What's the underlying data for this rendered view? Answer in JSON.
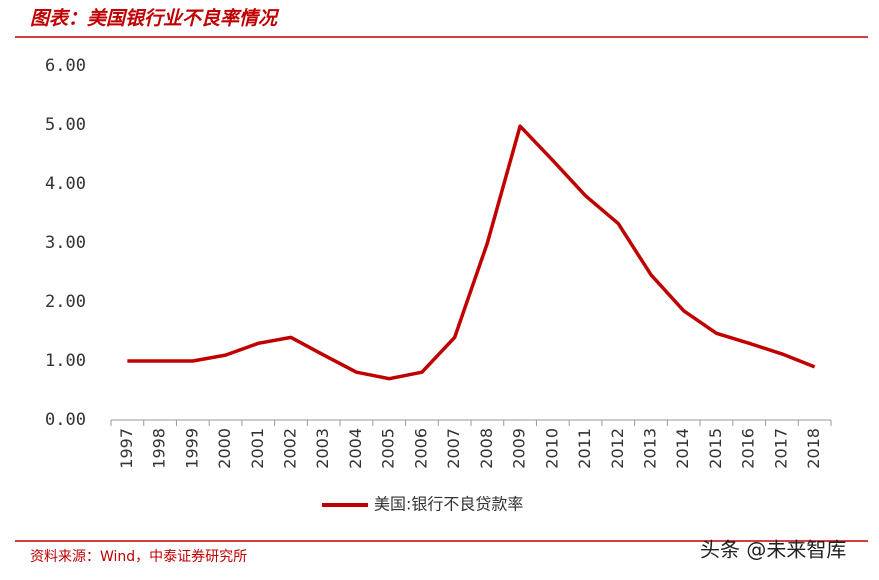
{
  "chart_data": {
    "type": "line",
    "title": "图表：美国银行业不良率情况",
    "categories": [
      "1997",
      "1998",
      "1999",
      "2000",
      "2001",
      "2002",
      "2003",
      "2004",
      "2005",
      "2006",
      "2007",
      "2008",
      "2009",
      "2010",
      "2011",
      "2012",
      "2013",
      "2014",
      "2015",
      "2016",
      "2017",
      "2018"
    ],
    "series": [
      {
        "name": "美国:银行不良贷款率",
        "color": "#c00000",
        "values": [
          1.0,
          1.0,
          1.0,
          1.1,
          1.3,
          1.4,
          1.1,
          0.81,
          0.7,
          0.81,
          1.4,
          3.0,
          4.98,
          4.4,
          3.8,
          3.33,
          2.46,
          1.85,
          1.47,
          1.3,
          1.12,
          0.9
        ]
      }
    ],
    "ylim": [
      0,
      6
    ],
    "yticks": [
      {
        "value": 0,
        "label": "0.00"
      },
      {
        "value": 1,
        "label": "1.00"
      },
      {
        "value": 2,
        "label": "2.00"
      },
      {
        "value": 3,
        "label": "3.00"
      },
      {
        "value": 4,
        "label": "4.00"
      },
      {
        "value": 5,
        "label": "5.00"
      },
      {
        "value": 6,
        "label": "6.00"
      }
    ],
    "grid": false,
    "legend": "bottom",
    "source": "资料来源：Wind，中泰证券研究所",
    "watermark": "头条 @未来智库"
  }
}
